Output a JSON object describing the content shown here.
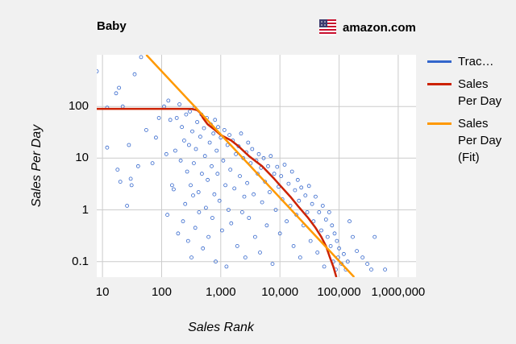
{
  "header": {
    "title": "Baby",
    "store": "amazon.com"
  },
  "colors": {
    "background": "#f1f1f1",
    "plot_background": "#ffffff",
    "grid": "#cccccc",
    "tracked": "#3366cc",
    "sales_per_day": "#cc2200",
    "fit": "#ff9900"
  },
  "icons": {
    "flag": "us-flag-icon"
  },
  "chart_data": {
    "type": "scatter",
    "xlabel": "Sales Rank",
    "ylabel": "Sales Per Day",
    "xscale": "log",
    "yscale": "log",
    "xlim": [
      8,
      2000000
    ],
    "ylim": [
      0.05,
      1000
    ],
    "x_ticks": [
      10,
      100,
      1000,
      10000,
      100000,
      1000000
    ],
    "x_tick_labels": [
      "10",
      "100",
      "1,000",
      "10,000",
      "100,000",
      "1,000,000"
    ],
    "y_ticks": [
      0.1,
      1,
      10,
      100
    ],
    "y_tick_labels": [
      "0.1",
      "1",
      "10",
      "100"
    ],
    "grid": true,
    "legend_position": "right",
    "series": [
      {
        "name": "Trac…",
        "kind": "scatter",
        "color": "#3366cc",
        "points": [
          [
            8,
            480
          ],
          [
            12,
            95
          ],
          [
            12,
            16
          ],
          [
            17,
            180
          ],
          [
            18,
            6
          ],
          [
            19,
            230
          ],
          [
            20,
            3.5
          ],
          [
            22,
            100
          ],
          [
            26,
            1.2
          ],
          [
            28,
            18
          ],
          [
            30,
            4
          ],
          [
            31,
            3
          ],
          [
            35,
            420
          ],
          [
            40,
            7
          ],
          [
            45,
            900
          ],
          [
            55,
            35
          ],
          [
            70,
            8
          ],
          [
            80,
            25
          ],
          [
            90,
            60
          ],
          [
            110,
            100
          ],
          [
            120,
            12
          ],
          [
            125,
            0.8
          ],
          [
            130,
            130
          ],
          [
            140,
            55
          ],
          [
            150,
            3
          ],
          [
            160,
            2.5
          ],
          [
            170,
            14
          ],
          [
            180,
            60
          ],
          [
            190,
            0.35
          ],
          [
            200,
            110
          ],
          [
            210,
            9
          ],
          [
            220,
            40
          ],
          [
            230,
            0.6
          ],
          [
            240,
            22
          ],
          [
            250,
            1.3
          ],
          [
            260,
            70
          ],
          [
            270,
            5.5
          ],
          [
            280,
            0.25
          ],
          [
            290,
            18
          ],
          [
            300,
            80
          ],
          [
            310,
            3
          ],
          [
            320,
            0.12
          ],
          [
            330,
            33
          ],
          [
            340,
            1.9
          ],
          [
            350,
            8
          ],
          [
            360,
            95
          ],
          [
            370,
            0.45
          ],
          [
            380,
            15
          ],
          [
            400,
            50
          ],
          [
            420,
            2.2
          ],
          [
            430,
            0.9
          ],
          [
            450,
            26
          ],
          [
            470,
            70
          ],
          [
            480,
            5
          ],
          [
            500,
            0.18
          ],
          [
            520,
            38
          ],
          [
            540,
            11
          ],
          [
            560,
            1.1
          ],
          [
            580,
            60
          ],
          [
            600,
            3.8
          ],
          [
            620,
            0.3
          ],
          [
            650,
            20
          ],
          [
            680,
            45
          ],
          [
            700,
            7
          ],
          [
            720,
            0.7
          ],
          [
            750,
            30
          ],
          [
            780,
            2
          ],
          [
            800,
            55
          ],
          [
            820,
            0.1
          ],
          [
            850,
            14
          ],
          [
            880,
            5
          ],
          [
            900,
            40
          ],
          [
            950,
            1.5
          ],
          [
            1000,
            25
          ],
          [
            1050,
            0.4
          ],
          [
            1100,
            9
          ],
          [
            1150,
            35
          ],
          [
            1200,
            3
          ],
          [
            1250,
            0.08
          ],
          [
            1300,
            18
          ],
          [
            1350,
            1
          ],
          [
            1400,
            28
          ],
          [
            1450,
            6
          ],
          [
            1500,
            0.55
          ],
          [
            1600,
            22
          ],
          [
            1700,
            2.6
          ],
          [
            1800,
            12
          ],
          [
            1900,
            0.2
          ],
          [
            2000,
            17
          ],
          [
            2100,
            4.5
          ],
          [
            2200,
            30
          ],
          [
            2300,
            0.9
          ],
          [
            2400,
            10
          ],
          [
            2500,
            1.8
          ],
          [
            2600,
            0.12
          ],
          [
            2700,
            13
          ],
          [
            2800,
            3.3
          ],
          [
            2900,
            20
          ],
          [
            3000,
            0.7
          ],
          [
            3200,
            8
          ],
          [
            3400,
            15
          ],
          [
            3600,
            2
          ],
          [
            3800,
            0.3
          ],
          [
            4000,
            9
          ],
          [
            4200,
            5
          ],
          [
            4400,
            12
          ],
          [
            4600,
            0.15
          ],
          [
            4800,
            6.5
          ],
          [
            5000,
            1.4
          ],
          [
            5300,
            10
          ],
          [
            5600,
            3.5
          ],
          [
            6000,
            0.5
          ],
          [
            6300,
            7
          ],
          [
            6700,
            2.2
          ],
          [
            7000,
            11
          ],
          [
            7500,
            0.09
          ],
          [
            8000,
            5
          ],
          [
            8500,
            1
          ],
          [
            9000,
            6.8
          ],
          [
            9500,
            2.8
          ],
          [
            10000,
            0.35
          ],
          [
            10500,
            4.5
          ],
          [
            11000,
            1.6
          ],
          [
            12000,
            7.5
          ],
          [
            13000,
            0.6
          ],
          [
            14000,
            3.2
          ],
          [
            15000,
            1.2
          ],
          [
            16000,
            5.5
          ],
          [
            17000,
            0.2
          ],
          [
            18000,
            2.4
          ],
          [
            19000,
            0.8
          ],
          [
            20000,
            3.8
          ],
          [
            21000,
            1.5
          ],
          [
            22000,
            0.12
          ],
          [
            23000,
            2.7
          ],
          [
            25000,
            0.5
          ],
          [
            27000,
            1.9
          ],
          [
            29000,
            0.9
          ],
          [
            31000,
            2.9
          ],
          [
            33000,
            0.25
          ],
          [
            35000,
            1.3
          ],
          [
            37000,
            0.6
          ],
          [
            40000,
            1.8
          ],
          [
            43000,
            0.15
          ],
          [
            46000,
            0.9
          ],
          [
            50000,
            0.4
          ],
          [
            53000,
            1.2
          ],
          [
            56000,
            0.08
          ],
          [
            60000,
            0.65
          ],
          [
            64000,
            0.3
          ],
          [
            68000,
            0.9
          ],
          [
            72000,
            0.2
          ],
          [
            76000,
            0.5
          ],
          [
            80000,
            0.1
          ],
          [
            84000,
            0.35
          ],
          [
            88000,
            0.07
          ],
          [
            92000,
            0.25
          ],
          [
            96000,
            0.12
          ],
          [
            100000,
            0.18
          ],
          [
            110000,
            0.09
          ],
          [
            120000,
            0.14
          ],
          [
            130000,
            0.07
          ],
          [
            140000,
            0.1
          ],
          [
            150000,
            0.6
          ],
          [
            170000,
            0.3
          ],
          [
            200000,
            0.16
          ],
          [
            250000,
            0.12
          ],
          [
            300000,
            0.09
          ],
          [
            350000,
            0.07
          ],
          [
            400000,
            0.3
          ],
          [
            600000,
            0.07
          ]
        ]
      },
      {
        "name": "Sales Per Day",
        "kind": "line",
        "color": "#cc2200",
        "points": [
          [
            8,
            90
          ],
          [
            100,
            90
          ],
          [
            320,
            90
          ],
          [
            400,
            85
          ],
          [
            450,
            75
          ],
          [
            500,
            60
          ],
          [
            600,
            45
          ],
          [
            800,
            35
          ],
          [
            1000,
            28
          ],
          [
            1500,
            22
          ],
          [
            2000,
            17
          ],
          [
            3000,
            11
          ],
          [
            5000,
            7
          ],
          [
            8000,
            4
          ],
          [
            10000,
            3
          ],
          [
            15000,
            1.8
          ],
          [
            20000,
            1.2
          ],
          [
            30000,
            0.7
          ],
          [
            40000,
            0.45
          ],
          [
            50000,
            0.3
          ],
          [
            60000,
            0.2
          ],
          [
            70000,
            0.12
          ],
          [
            80000,
            0.08
          ],
          [
            90000,
            0.05
          ]
        ]
      },
      {
        "name": "Sales Per Day (Fit)",
        "kind": "line",
        "color": "#ff9900",
        "points": [
          [
            55,
            1000
          ],
          [
            180000,
            0.05
          ]
        ]
      }
    ]
  }
}
